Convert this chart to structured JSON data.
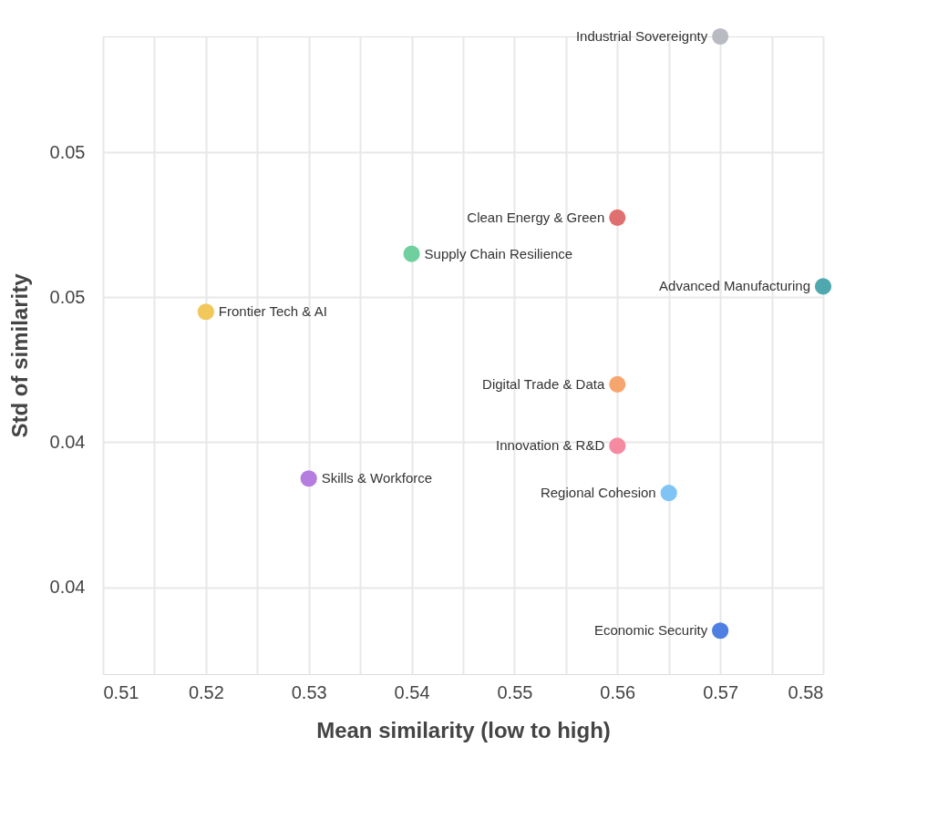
{
  "chart_data": {
    "type": "scatter",
    "xlabel": "Mean similarity (low to high)",
    "ylabel": "Std of similarity",
    "xlim": [
      0.51,
      0.58
    ],
    "ylim": [
      0.0376,
      0.0552
    ],
    "xticks": [
      0.51,
      {
        "value": 0.515,
        "label": null
      },
      0.52,
      {
        "value": 0.525,
        "label": null
      },
      0.53,
      {
        "value": 0.535,
        "label": null
      },
      0.54,
      {
        "value": 0.545,
        "label": null
      },
      0.55,
      {
        "value": 0.555,
        "label": null
      },
      0.56,
      {
        "value": 0.565,
        "label": null
      },
      0.57,
      {
        "value": 0.575,
        "label": null
      },
      0.58
    ],
    "yticks": [
      {
        "value": 0.04,
        "label": "0.04"
      },
      {
        "value": 0.044,
        "label": "0.04"
      },
      {
        "value": 0.048,
        "label": "0.05"
      },
      {
        "value": 0.052,
        "label": "0.05"
      }
    ],
    "grid": true,
    "legend": false,
    "marker": "circle",
    "series": [
      {
        "name": "Industrial Sovereignty",
        "color": "#b8bcc2",
        "x": [
          0.57
        ],
        "values": [
          0.0552
        ]
      },
      {
        "name": "Clean Energy & Green",
        "color": "#e07070",
        "x": [
          0.56
        ],
        "values": [
          0.0502
        ]
      },
      {
        "name": "Supply Chain Resilience",
        "color": "#6fcf9f",
        "x": [
          0.54
        ],
        "values": [
          0.0492
        ]
      },
      {
        "name": "Advanced Manufacturing",
        "color": "#4fa8ad",
        "x": [
          0.58
        ],
        "values": [
          0.0483
        ]
      },
      {
        "name": "Frontier Tech & AI",
        "color": "#f2c75c",
        "x": [
          0.52
        ],
        "values": [
          0.0476
        ]
      },
      {
        "name": "Digital Trade & Data",
        "color": "#f7a56e",
        "x": [
          0.56
        ],
        "values": [
          0.0456
        ]
      },
      {
        "name": "Innovation & R&D",
        "color": "#f58aa0",
        "x": [
          0.56
        ],
        "values": [
          0.0439
        ]
      },
      {
        "name": "Skills & Workforce",
        "color": "#b57de0",
        "x": [
          0.53
        ],
        "values": [
          0.043
        ]
      },
      {
        "name": "Regional Cohesion",
        "color": "#7fc4f5",
        "x": [
          0.565
        ],
        "values": [
          0.0426
        ]
      },
      {
        "name": "Economic Security",
        "color": "#4f7fe0",
        "x": [
          0.57
        ],
        "values": [
          0.0388
        ]
      }
    ]
  }
}
